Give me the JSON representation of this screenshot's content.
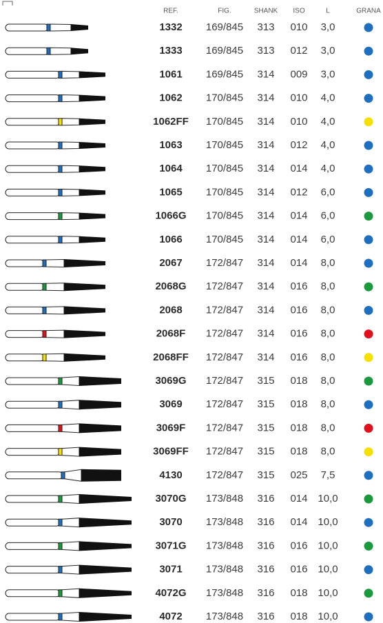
{
  "table": {
    "header": [
      "REF.",
      "FIG.",
      "SHANK",
      "ISO",
      "L",
      "GRANA"
    ],
    "rows": [
      {
        "ref": "1332",
        "fig": "169/845",
        "shank": "313",
        "iso": "010",
        "l": "3,0",
        "color": "#1f6fc0"
      },
      {
        "ref": "1333",
        "fig": "169/845",
        "shank": "313",
        "iso": "012",
        "l": "3,0",
        "color": "#1f6fc0"
      },
      {
        "ref": "1061",
        "fig": "169/845",
        "shank": "314",
        "iso": "009",
        "l": "3,0",
        "color": "#1f6fc0"
      },
      {
        "ref": "1062",
        "fig": "170/845",
        "shank": "314",
        "iso": "010",
        "l": "4,0",
        "color": "#1f6fc0"
      },
      {
        "ref": "1062FF",
        "fig": "170/845",
        "shank": "314",
        "iso": "010",
        "l": "4,0",
        "color": "#f5e000"
      },
      {
        "ref": "1063",
        "fig": "170/845",
        "shank": "314",
        "iso": "012",
        "l": "4,0",
        "color": "#1f6fc0"
      },
      {
        "ref": "1064",
        "fig": "170/845",
        "shank": "314",
        "iso": "014",
        "l": "4,0",
        "color": "#1f6fc0"
      },
      {
        "ref": "1065",
        "fig": "170/845",
        "shank": "314",
        "iso": "012",
        "l": "6,0",
        "color": "#1f6fc0"
      },
      {
        "ref": "1066G",
        "fig": "170/845",
        "shank": "314",
        "iso": "014",
        "l": "6,0",
        "color": "#1a9a3c"
      },
      {
        "ref": "1066",
        "fig": "170/845",
        "shank": "314",
        "iso": "014",
        "l": "6,0",
        "color": "#1f6fc0"
      },
      {
        "ref": "2067",
        "fig": "172/847",
        "shank": "314",
        "iso": "014",
        "l": "8,0",
        "color": "#1f6fc0"
      },
      {
        "ref": "2068G",
        "fig": "172/847",
        "shank": "314",
        "iso": "016",
        "l": "8,0",
        "color": "#1a9a3c"
      },
      {
        "ref": "2068",
        "fig": "172/847",
        "shank": "314",
        "iso": "016",
        "l": "8,0",
        "color": "#1f6fc0"
      },
      {
        "ref": "2068F",
        "fig": "172/847",
        "shank": "314",
        "iso": "016",
        "l": "8,0",
        "color": "#e0101c"
      },
      {
        "ref": "2068FF",
        "fig": "172/847",
        "shank": "314",
        "iso": "016",
        "l": "8,0",
        "color": "#f5e000"
      },
      {
        "ref": "3069G",
        "fig": "172/847",
        "shank": "315",
        "iso": "018",
        "l": "8,0",
        "color": "#1a9a3c"
      },
      {
        "ref": "3069",
        "fig": "172/847",
        "shank": "315",
        "iso": "018",
        "l": "8,0",
        "color": "#1f6fc0"
      },
      {
        "ref": "3069F",
        "fig": "172/847",
        "shank": "315",
        "iso": "018",
        "l": "8,0",
        "color": "#e0101c"
      },
      {
        "ref": "3069FF",
        "fig": "172/847",
        "shank": "315",
        "iso": "018",
        "l": "8,0",
        "color": "#f5e000"
      },
      {
        "ref": "4130",
        "fig": "172/847",
        "shank": "315",
        "iso": "025",
        "l": "7,5",
        "color": "#1f6fc0"
      },
      {
        "ref": "3070G",
        "fig": "173/848",
        "shank": "316",
        "iso": "014",
        "l": "10,0",
        "color": "#1a9a3c"
      },
      {
        "ref": "3070",
        "fig": "173/848",
        "shank": "316",
        "iso": "014",
        "l": "10,0",
        "color": "#1f6fc0"
      },
      {
        "ref": "3071G",
        "fig": "173/848",
        "shank": "316",
        "iso": "016",
        "l": "10,0",
        "color": "#1a9a3c"
      },
      {
        "ref": "3071",
        "fig": "173/848",
        "shank": "316",
        "iso": "016",
        "l": "10,0",
        "color": "#1f6fc0"
      },
      {
        "ref": "4072G",
        "fig": "173/848",
        "shank": "316",
        "iso": "018",
        "l": "10,0",
        "color": "#1a9a3c"
      },
      {
        "ref": "4072",
        "fig": "173/848",
        "shank": "316",
        "iso": "018",
        "l": "10,0",
        "color": "#1f6fc0"
      }
    ]
  }
}
